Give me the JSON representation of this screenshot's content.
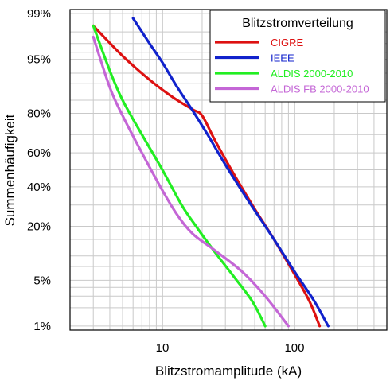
{
  "chart_data": {
    "type": "line",
    "title": "",
    "xlabel": "Blitzstromamplitude (kA)",
    "ylabel": "Summenhäufigkeit",
    "x_scale": "log",
    "y_scale": "probability",
    "xlim": [
      2,
      500
    ],
    "x_ticks": [
      {
        "value": 10,
        "label": "10"
      },
      {
        "value": 100,
        "label": "100"
      }
    ],
    "y_ticks": [
      {
        "value": 99,
        "label": "99%"
      },
      {
        "value": 95,
        "label": "95%"
      },
      {
        "value": 80,
        "label": "80%"
      },
      {
        "value": 60,
        "label": "60%"
      },
      {
        "value": 40,
        "label": "40%"
      },
      {
        "value": 20,
        "label": "20%"
      },
      {
        "value": 5,
        "label": "5%"
      },
      {
        "value": 1,
        "label": "1%"
      }
    ],
    "grid": true,
    "legend": {
      "title": "Blitzstromverteilung",
      "position": "top-right"
    },
    "series": [
      {
        "name": "CIGRE",
        "color": "#dd1111",
        "points": [
          [
            3,
            98.4
          ],
          [
            5,
            95.5
          ],
          [
            8,
            91
          ],
          [
            12,
            86
          ],
          [
            17,
            81.5
          ],
          [
            20,
            79
          ],
          [
            25,
            67
          ],
          [
            35,
            47
          ],
          [
            50,
            28
          ],
          [
            70,
            15
          ],
          [
            100,
            6
          ],
          [
            130,
            2.5
          ],
          [
            155,
            1
          ]
        ]
      },
      {
        "name": "IEEE",
        "color": "#1122cc",
        "points": [
          [
            6,
            98.8
          ],
          [
            8,
            97
          ],
          [
            10,
            94.5
          ],
          [
            13,
            89
          ],
          [
            17,
            81
          ],
          [
            22,
            70
          ],
          [
            30,
            53
          ],
          [
            45,
            32
          ],
          [
            70,
            15
          ],
          [
            100,
            6.5
          ],
          [
            140,
            2.6
          ],
          [
            180,
            1
          ]
        ]
      },
      {
        "name": "ALDIS 2000-2010",
        "color": "#22ee22",
        "points": [
          [
            3,
            98.4
          ],
          [
            4,
            93
          ],
          [
            5,
            85
          ],
          [
            7,
            70
          ],
          [
            10,
            50
          ],
          [
            14,
            30
          ],
          [
            18,
            20
          ],
          [
            25,
            11
          ],
          [
            35,
            5.5
          ],
          [
            48,
            2.5
          ],
          [
            60,
            1
          ]
        ]
      },
      {
        "name": "ALDIS FB 2000-2010",
        "color": "#c466d6",
        "points": [
          [
            3,
            97.6
          ],
          [
            4,
            89
          ],
          [
            5,
            79
          ],
          [
            7,
            60
          ],
          [
            10,
            38
          ],
          [
            13,
            25
          ],
          [
            17,
            17
          ],
          [
            25,
            11.5
          ],
          [
            40,
            6.5
          ],
          [
            60,
            3
          ],
          [
            90,
            1
          ]
        ]
      }
    ]
  }
}
